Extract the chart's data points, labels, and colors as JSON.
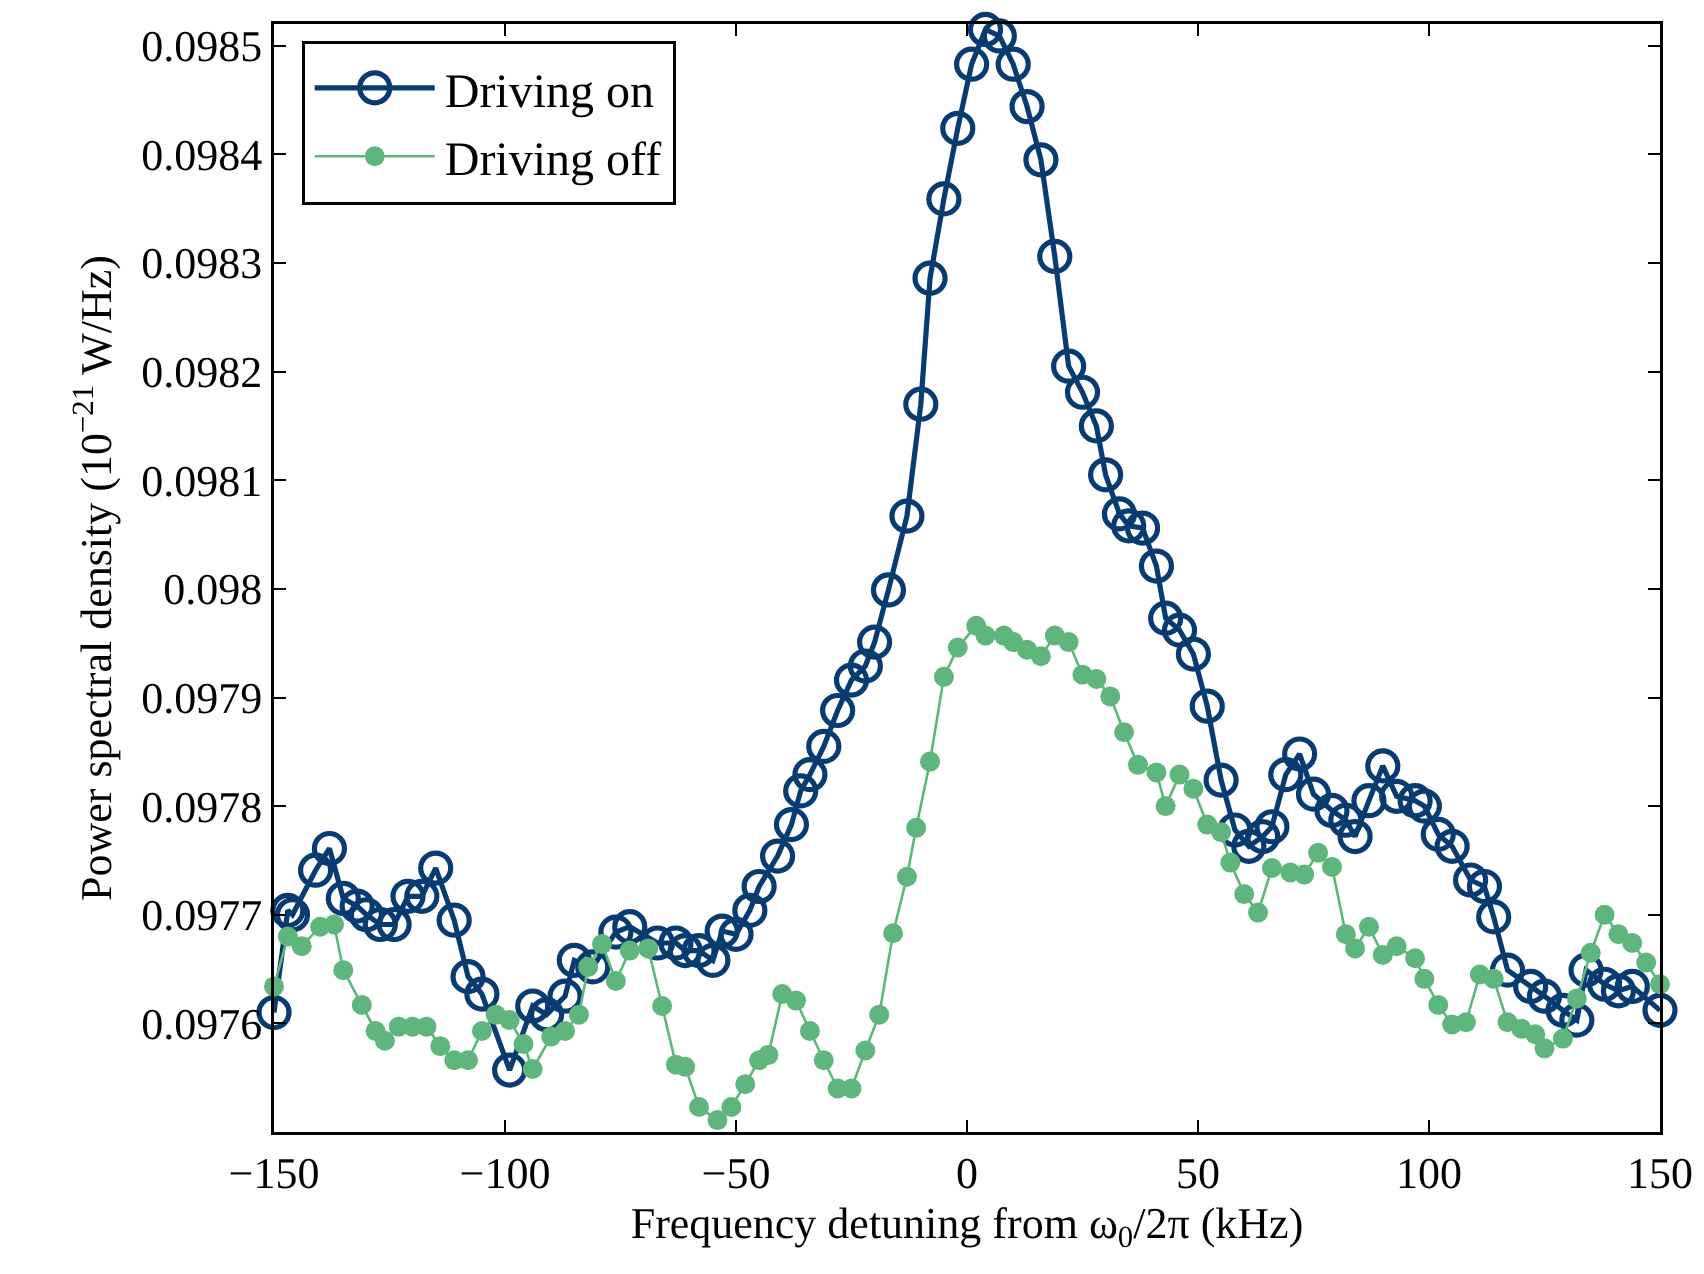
{
  "chart_data": {
    "type": "line",
    "xlabel": "Frequency detuning from ω$_{0}$/2π (kHz)",
    "ylabel": "Power spectral density (10$^{−21}$ W/Hz)",
    "xlim": [
      -150,
      150
    ],
    "xticks": [
      {
        "value": -150,
        "label": "−150"
      },
      {
        "value": -100,
        "label": "−100"
      },
      {
        "value": -50,
        "label": "−50"
      },
      0,
      50,
      100,
      150
    ],
    "ylim": [
      0.0975,
      0.09852
    ],
    "yticks": [
      0.0976,
      0.0977,
      0.0978,
      0.0979,
      0.098,
      0.0981,
      0.0982,
      0.0983,
      0.0984,
      0.0985
    ],
    "grid": false,
    "legend": "top left",
    "line_style": "solid",
    "series": [
      {
        "name": "Driving on",
        "color": "#083b72",
        "marker": "circle-open",
        "x": [
          -150,
          -147,
          -146,
          -141,
          -138,
          -135,
          -132,
          -130,
          -127,
          -124,
          -121,
          -118,
          -115,
          -111,
          -108,
          -105,
          -99,
          -94,
          -91,
          -87,
          -85,
          -81,
          -76,
          -73,
          -67,
          -63,
          -61,
          -58,
          -55,
          -53,
          -50,
          -47,
          -45,
          -41,
          -38,
          -36,
          -34,
          -31,
          -28,
          -25,
          -22,
          -20,
          -17,
          -13,
          -10,
          -8,
          -5,
          -2,
          1,
          4,
          7,
          10,
          13,
          16,
          19,
          22,
          25,
          28,
          30,
          33,
          35,
          38,
          41,
          43,
          46,
          49,
          52,
          55,
          58,
          61,
          64,
          66,
          69,
          72,
          75,
          79,
          82,
          84,
          87,
          90,
          93,
          97,
          99,
          102,
          105,
          109,
          112,
          114,
          117,
          122,
          125,
          129,
          132,
          134,
          138,
          141,
          144,
          150
        ],
        "values": [
          0.09761,
          0.097704,
          0.0977,
          0.097741,
          0.097761,
          0.097715,
          0.097708,
          0.0977,
          0.097691,
          0.097691,
          0.097717,
          0.097717,
          0.097743,
          0.097695,
          0.097643,
          0.097627,
          0.097557,
          0.097616,
          0.097608,
          0.097625,
          0.097658,
          0.097652,
          0.097684,
          0.097689,
          0.097674,
          0.097674,
          0.097667,
          0.097667,
          0.097658,
          0.097685,
          0.097682,
          0.097704,
          0.097726,
          0.097754,
          0.097783,
          0.097814,
          0.097829,
          0.097855,
          0.097888,
          0.097916,
          0.097929,
          0.097951,
          0.097999,
          0.098067,
          0.09817,
          0.098286,
          0.098359,
          0.098424,
          0.098483,
          0.098515,
          0.098509,
          0.098483,
          0.098444,
          0.098395,
          0.098306,
          0.098205,
          0.098181,
          0.09815,
          0.098105,
          0.098069,
          0.098058,
          0.098056,
          0.098021,
          0.097973,
          0.097962,
          0.09794,
          0.097892,
          0.097824,
          0.097778,
          0.097763,
          0.097772,
          0.097781,
          0.097829,
          0.097848,
          0.097811,
          0.097796,
          0.097787,
          0.097772,
          0.097805,
          0.097837,
          0.097809,
          0.097805,
          0.0978,
          0.097774,
          0.097763,
          0.097732,
          0.097726,
          0.097698,
          0.097649,
          0.097634,
          0.097625,
          0.097612,
          0.097603,
          0.097649,
          0.097636,
          0.09763,
          0.097634,
          0.097612
        ]
      },
      {
        "name": "Driving off",
        "color": "#5fb67d",
        "marker": "circle",
        "x": [
          -150,
          -147,
          -144,
          -140,
          -137,
          -135,
          -131,
          -128,
          -126,
          -123,
          -120,
          -117,
          -114,
          -111,
          -108,
          -105,
          -102,
          -99,
          -96,
          -94,
          -90,
          -87,
          -84,
          -82,
          -79,
          -76,
          -73,
          -69,
          -66,
          -63,
          -61,
          -58,
          -54,
          -51,
          -48,
          -45,
          -43,
          -40,
          -37,
          -34,
          -31,
          -28,
          -25,
          -22,
          -19,
          -16,
          -13,
          -11,
          -8,
          -5,
          -2,
          2,
          4,
          8,
          10,
          13,
          16,
          19,
          22,
          25,
          28,
          31,
          34,
          37,
          41,
          43,
          46,
          49,
          52,
          55,
          57,
          60,
          63,
          66,
          70,
          73,
          76,
          79,
          82,
          84,
          87,
          90,
          93,
          97,
          99,
          102,
          105,
          108,
          111,
          114,
          117,
          120,
          123,
          125,
          129,
          132,
          135,
          138,
          141,
          144,
          147,
          150
        ],
        "values": [
          0.097634,
          0.09768,
          0.097671,
          0.097689,
          0.097691,
          0.097649,
          0.097617,
          0.097593,
          0.097584,
          0.097597,
          0.097597,
          0.097597,
          0.097579,
          0.097566,
          0.097566,
          0.097593,
          0.097608,
          0.097603,
          0.097581,
          0.097558,
          0.097588,
          0.097593,
          0.097608,
          0.097652,
          0.097673,
          0.097639,
          0.097667,
          0.097669,
          0.097616,
          0.097562,
          0.09756,
          0.097523,
          0.097511,
          0.097523,
          0.097544,
          0.097566,
          0.097571,
          0.097627,
          0.097621,
          0.097593,
          0.097566,
          0.09754,
          0.09754,
          0.097575,
          0.097608,
          0.097683,
          0.097735,
          0.09778,
          0.097841,
          0.097919,
          0.097946,
          0.097966,
          0.097957,
          0.097957,
          0.097951,
          0.097944,
          0.097938,
          0.097957,
          0.097951,
          0.097921,
          0.097917,
          0.097901,
          0.097868,
          0.097838,
          0.097831,
          0.0978,
          0.097829,
          0.097816,
          0.097783,
          0.097776,
          0.097748,
          0.097719,
          0.097702,
          0.097743,
          0.097739,
          0.097737,
          0.097757,
          0.097744,
          0.097682,
          0.097669,
          0.097689,
          0.097663,
          0.097671,
          0.09766,
          0.097641,
          0.097617,
          0.097599,
          0.097601,
          0.097645,
          0.097641,
          0.097601,
          0.097595,
          0.09759,
          0.097577,
          0.097586,
          0.097623,
          0.097665,
          0.0977,
          0.097682,
          0.097674,
          0.097656,
          0.097636
        ]
      }
    ]
  }
}
